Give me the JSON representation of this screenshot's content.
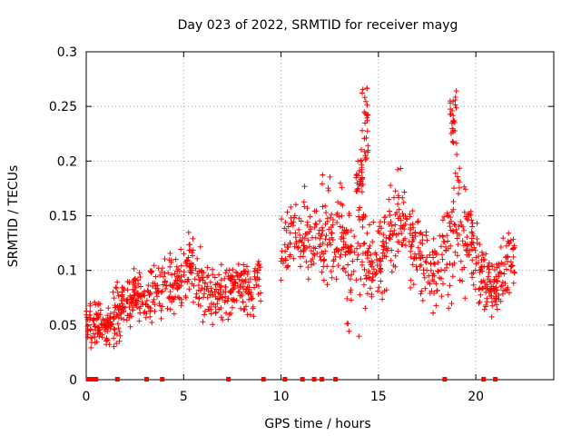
{
  "chart_data": {
    "type": "scatter",
    "title": "Day 023 of 2022, SRMTID for receiver mayg",
    "xlabel": "GPS time / hours",
    "ylabel": "SRMTID / TECUs",
    "xlim": [
      0,
      24
    ],
    "ylim": [
      0,
      0.3
    ],
    "x_ticks": [
      0,
      5,
      10,
      15,
      20
    ],
    "x_tick_labels": [
      "0",
      "5",
      "10",
      "15",
      "20"
    ],
    "y_ticks": [
      0,
      0.05,
      0.1,
      0.15,
      0.2,
      0.25,
      0.3
    ],
    "y_tick_labels": [
      "0",
      "0.05",
      "0.1",
      "0.15",
      "0.2",
      "0.25",
      "0.3"
    ],
    "grid": true,
    "marker": "plus",
    "color": "#ff0000",
    "data_gap_markers_x": [
      0.1,
      0.3,
      0.4,
      0.5,
      1.6,
      3.1,
      3.9,
      7.3,
      9.1,
      10.2,
      11.1,
      11.7,
      12.1,
      12.8,
      18.4,
      20.4,
      21.0
    ],
    "envelope": {
      "x": [
        0,
        0.5,
        1,
        1.5,
        2,
        2.5,
        3,
        3.5,
        4,
        4.5,
        5,
        5.5,
        6,
        6.5,
        7,
        7.5,
        8,
        8.5,
        9,
        9.5,
        10,
        10.5,
        11,
        11.5,
        12,
        12.5,
        13,
        13.5,
        14,
        14.5,
        15,
        15.5,
        16,
        16.5,
        17,
        17.5,
        18,
        18.5,
        19,
        19.5,
        20,
        20.5,
        21,
        21.5,
        22
      ],
      "center": [
        0.05,
        0.05,
        0.045,
        0.06,
        0.07,
        0.08,
        0.075,
        0.08,
        0.085,
        0.09,
        0.1,
        0.1,
        0.085,
        0.075,
        0.08,
        0.085,
        0.085,
        0.08,
        0.1,
        null,
        0.12,
        0.13,
        0.13,
        0.13,
        0.13,
        0.14,
        0.13,
        0.12,
        0.13,
        0.1,
        0.11,
        0.13,
        0.15,
        0.14,
        0.12,
        0.1,
        0.1,
        0.12,
        0.14,
        0.14,
        0.11,
        0.09,
        0.085,
        0.1,
        0.11
      ],
      "spread": [
        0.015,
        0.02,
        0.02,
        0.025,
        0.025,
        0.025,
        0.02,
        0.025,
        0.025,
        0.03,
        0.035,
        0.035,
        0.025,
        0.025,
        0.025,
        0.025,
        0.025,
        0.025,
        0.03,
        null,
        0.03,
        0.035,
        0.035,
        0.04,
        0.04,
        0.045,
        0.04,
        0.05,
        0.07,
        0.04,
        0.035,
        0.04,
        0.035,
        0.04,
        0.04,
        0.035,
        0.035,
        0.05,
        0.07,
        0.05,
        0.035,
        0.03,
        0.03,
        0.03,
        0.025
      ]
    },
    "approx_point_count": 1400
  }
}
